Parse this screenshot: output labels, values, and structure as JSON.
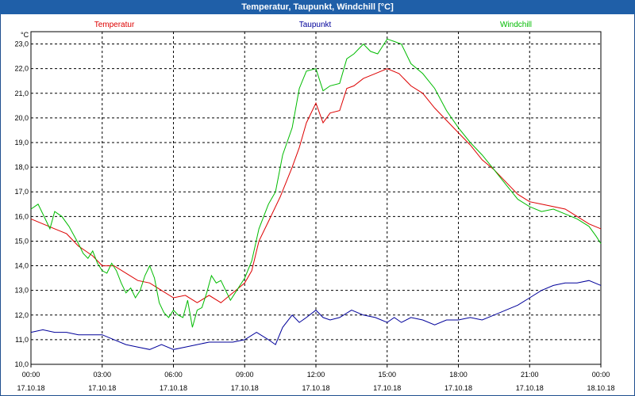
{
  "window": {
    "title": "Temperatur, Taupunkt, Windchill [°C]"
  },
  "chart_data": {
    "type": "line",
    "title": "Temperatur, Taupunkt, Windchill [°C]",
    "ylabel": "°C",
    "xlabel": "",
    "ylim": [
      10.0,
      23.5
    ],
    "xlim_hours": [
      0,
      24
    ],
    "y_ticks": [
      "10,0",
      "11,0",
      "12,0",
      "13,0",
      "14,0",
      "15,0",
      "16,0",
      "17,0",
      "18,0",
      "19,0",
      "20,0",
      "21,0",
      "22,0",
      "23,0"
    ],
    "x_ticks": [
      {
        "time": "00:00",
        "date": "17.10.18"
      },
      {
        "time": "03:00",
        "date": "17.10.18"
      },
      {
        "time": "06:00",
        "date": "17.10.18"
      },
      {
        "time": "09:00",
        "date": "17.10.18"
      },
      {
        "time": "12:00",
        "date": "17.10.18"
      },
      {
        "time": "15:00",
        "date": "17.10.18"
      },
      {
        "time": "18:00",
        "date": "17.10.18"
      },
      {
        "time": "21:00",
        "date": "17.10.18"
      },
      {
        "time": "00:00",
        "date": "18.10.18"
      }
    ],
    "grid": true,
    "legend_position": "top",
    "series": [
      {
        "name": "Temperatur",
        "color": "#dd0000",
        "points": [
          [
            0.0,
            15.9
          ],
          [
            0.5,
            15.7
          ],
          [
            1.0,
            15.5
          ],
          [
            1.5,
            15.3
          ],
          [
            2.0,
            14.8
          ],
          [
            2.3,
            14.6
          ],
          [
            2.6,
            14.4
          ],
          [
            3.0,
            14.0
          ],
          [
            3.5,
            14.0
          ],
          [
            4.0,
            13.7
          ],
          [
            4.5,
            13.4
          ],
          [
            5.0,
            13.3
          ],
          [
            5.5,
            13.0
          ],
          [
            6.0,
            12.7
          ],
          [
            6.5,
            12.8
          ],
          [
            7.0,
            12.5
          ],
          [
            7.5,
            12.8
          ],
          [
            8.0,
            12.5
          ],
          [
            8.5,
            12.9
          ],
          [
            9.0,
            13.3
          ],
          [
            9.3,
            13.8
          ],
          [
            9.6,
            15.0
          ],
          [
            10.0,
            15.8
          ],
          [
            10.5,
            16.8
          ],
          [
            11.0,
            18.0
          ],
          [
            11.3,
            18.8
          ],
          [
            11.6,
            19.8
          ],
          [
            12.0,
            20.6
          ],
          [
            12.3,
            19.8
          ],
          [
            12.6,
            20.2
          ],
          [
            13.0,
            20.3
          ],
          [
            13.3,
            21.2
          ],
          [
            13.6,
            21.3
          ],
          [
            14.0,
            21.6
          ],
          [
            14.5,
            21.8
          ],
          [
            15.0,
            22.0
          ],
          [
            15.5,
            21.8
          ],
          [
            16.0,
            21.3
          ],
          [
            16.5,
            21.0
          ],
          [
            17.0,
            20.4
          ],
          [
            17.5,
            19.9
          ],
          [
            18.0,
            19.4
          ],
          [
            18.5,
            18.9
          ],
          [
            19.0,
            18.3
          ],
          [
            19.5,
            17.9
          ],
          [
            20.0,
            17.4
          ],
          [
            20.5,
            16.9
          ],
          [
            21.0,
            16.6
          ],
          [
            21.5,
            16.5
          ],
          [
            22.0,
            16.4
          ],
          [
            22.5,
            16.3
          ],
          [
            23.0,
            16.0
          ],
          [
            23.5,
            15.7
          ],
          [
            24.0,
            15.5
          ]
        ]
      },
      {
        "name": "Taupunkt",
        "color": "#00009a",
        "points": [
          [
            0.0,
            11.3
          ],
          [
            0.5,
            11.4
          ],
          [
            1.0,
            11.3
          ],
          [
            1.5,
            11.3
          ],
          [
            2.0,
            11.2
          ],
          [
            2.5,
            11.2
          ],
          [
            3.0,
            11.2
          ],
          [
            3.5,
            11.0
          ],
          [
            4.0,
            10.8
          ],
          [
            4.5,
            10.7
          ],
          [
            5.0,
            10.6
          ],
          [
            5.5,
            10.8
          ],
          [
            6.0,
            10.6
          ],
          [
            6.5,
            10.7
          ],
          [
            7.0,
            10.8
          ],
          [
            7.5,
            10.9
          ],
          [
            8.0,
            10.9
          ],
          [
            8.5,
            10.9
          ],
          [
            9.0,
            11.0
          ],
          [
            9.5,
            11.3
          ],
          [
            10.0,
            11.0
          ],
          [
            10.3,
            10.8
          ],
          [
            10.6,
            11.5
          ],
          [
            11.0,
            12.0
          ],
          [
            11.3,
            11.7
          ],
          [
            11.6,
            11.9
          ],
          [
            12.0,
            12.2
          ],
          [
            12.3,
            11.9
          ],
          [
            12.6,
            11.8
          ],
          [
            13.0,
            11.9
          ],
          [
            13.5,
            12.2
          ],
          [
            14.0,
            12.0
          ],
          [
            14.5,
            11.9
          ],
          [
            15.0,
            11.7
          ],
          [
            15.3,
            11.9
          ],
          [
            15.6,
            11.7
          ],
          [
            16.0,
            11.9
          ],
          [
            16.5,
            11.8
          ],
          [
            17.0,
            11.6
          ],
          [
            17.5,
            11.8
          ],
          [
            18.0,
            11.8
          ],
          [
            18.5,
            11.9
          ],
          [
            19.0,
            11.8
          ],
          [
            19.5,
            12.0
          ],
          [
            20.0,
            12.2
          ],
          [
            20.5,
            12.4
          ],
          [
            21.0,
            12.7
          ],
          [
            21.5,
            13.0
          ],
          [
            22.0,
            13.2
          ],
          [
            22.5,
            13.3
          ],
          [
            23.0,
            13.3
          ],
          [
            23.5,
            13.4
          ],
          [
            24.0,
            13.2
          ]
        ]
      },
      {
        "name": "Windchill",
        "color": "#00bb00",
        "points": [
          [
            0.0,
            16.3
          ],
          [
            0.3,
            16.5
          ],
          [
            0.6,
            15.9
          ],
          [
            0.8,
            15.5
          ],
          [
            1.0,
            16.2
          ],
          [
            1.3,
            16.0
          ],
          [
            1.6,
            15.6
          ],
          [
            2.0,
            14.9
          ],
          [
            2.2,
            14.5
          ],
          [
            2.4,
            14.3
          ],
          [
            2.6,
            14.6
          ],
          [
            2.8,
            14.1
          ],
          [
            3.0,
            13.8
          ],
          [
            3.2,
            13.7
          ],
          [
            3.4,
            14.1
          ],
          [
            3.6,
            13.8
          ],
          [
            3.8,
            13.3
          ],
          [
            4.0,
            12.9
          ],
          [
            4.2,
            13.1
          ],
          [
            4.4,
            12.7
          ],
          [
            4.6,
            13.0
          ],
          [
            4.8,
            13.6
          ],
          [
            5.0,
            14.0
          ],
          [
            5.2,
            13.5
          ],
          [
            5.4,
            12.5
          ],
          [
            5.6,
            12.1
          ],
          [
            5.8,
            11.9
          ],
          [
            6.0,
            12.2
          ],
          [
            6.2,
            12.0
          ],
          [
            6.4,
            11.9
          ],
          [
            6.6,
            12.6
          ],
          [
            6.8,
            11.5
          ],
          [
            7.0,
            12.2
          ],
          [
            7.2,
            12.3
          ],
          [
            7.4,
            12.9
          ],
          [
            7.6,
            13.6
          ],
          [
            7.8,
            13.3
          ],
          [
            8.0,
            13.4
          ],
          [
            8.2,
            13.0
          ],
          [
            8.4,
            12.6
          ],
          [
            8.6,
            12.9
          ],
          [
            8.8,
            13.2
          ],
          [
            9.0,
            13.5
          ],
          [
            9.3,
            14.2
          ],
          [
            9.6,
            15.5
          ],
          [
            10.0,
            16.5
          ],
          [
            10.3,
            17.0
          ],
          [
            10.6,
            18.5
          ],
          [
            11.0,
            19.6
          ],
          [
            11.3,
            21.2
          ],
          [
            11.6,
            21.9
          ],
          [
            12.0,
            22.0
          ],
          [
            12.3,
            21.1
          ],
          [
            12.6,
            21.3
          ],
          [
            13.0,
            21.4
          ],
          [
            13.3,
            22.4
          ],
          [
            13.6,
            22.6
          ],
          [
            14.0,
            23.0
          ],
          [
            14.3,
            22.7
          ],
          [
            14.6,
            22.6
          ],
          [
            15.0,
            23.2
          ],
          [
            15.3,
            23.1
          ],
          [
            15.6,
            23.0
          ],
          [
            16.0,
            22.2
          ],
          [
            16.5,
            21.8
          ],
          [
            17.0,
            21.2
          ],
          [
            17.5,
            20.3
          ],
          [
            18.0,
            19.6
          ],
          [
            18.5,
            19.0
          ],
          [
            19.0,
            18.5
          ],
          [
            19.5,
            17.9
          ],
          [
            20.0,
            17.3
          ],
          [
            20.5,
            16.7
          ],
          [
            21.0,
            16.4
          ],
          [
            21.5,
            16.2
          ],
          [
            22.0,
            16.3
          ],
          [
            22.5,
            16.1
          ],
          [
            23.0,
            15.9
          ],
          [
            23.5,
            15.6
          ],
          [
            23.8,
            15.2
          ],
          [
            24.0,
            14.9
          ]
        ]
      }
    ]
  }
}
